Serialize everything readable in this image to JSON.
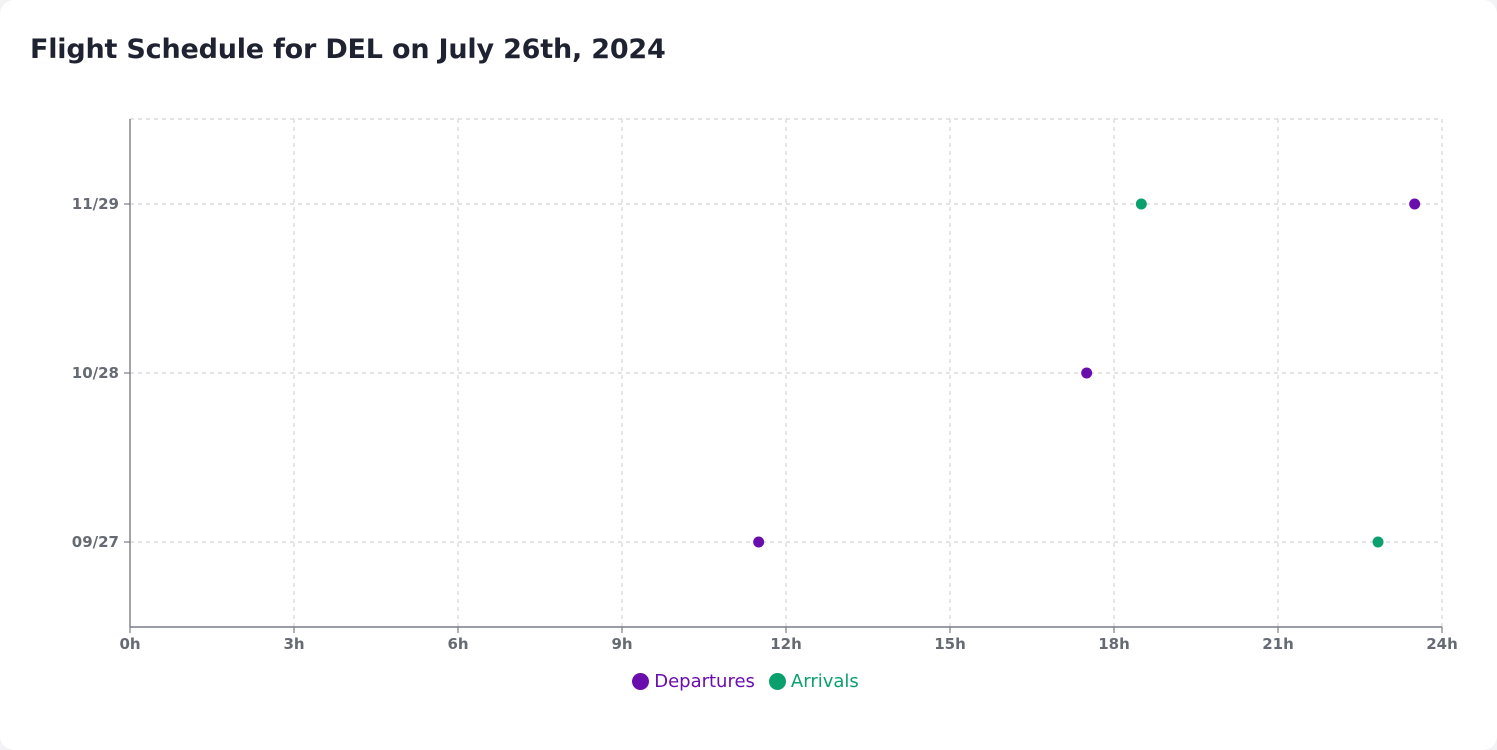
{
  "title": "Flight Schedule for DEL on July 26th, 2024",
  "colors": {
    "departures": "#6a0dad",
    "arrivals": "#0aa06e",
    "grid": "#d4d4d8",
    "axis": "#7a7d85",
    "tick_text": "#666a73"
  },
  "chart_data": {
    "type": "scatter",
    "title": "Flight Schedule for DEL on July 26th, 2024",
    "xlabel": "",
    "ylabel": "",
    "x_ticks": [
      "0h",
      "3h",
      "6h",
      "9h",
      "12h",
      "15h",
      "18h",
      "21h",
      "24h"
    ],
    "xlim": [
      0,
      24
    ],
    "y_categories": [
      "09/27",
      "10/28",
      "11/29"
    ],
    "grid": true,
    "legend_position": "bottom-center",
    "series": [
      {
        "name": "Departures",
        "color": "#6a0dad",
        "points": [
          {
            "x": 11.5,
            "y": "09/27"
          },
          {
            "x": 17.5,
            "y": "10/28"
          },
          {
            "x": 23.5,
            "y": "11/29"
          }
        ]
      },
      {
        "name": "Arrivals",
        "color": "#0aa06e",
        "points": [
          {
            "x": 18.5,
            "y": "11/29"
          },
          {
            "x": 22.83,
            "y": "09/27"
          }
        ]
      }
    ]
  }
}
